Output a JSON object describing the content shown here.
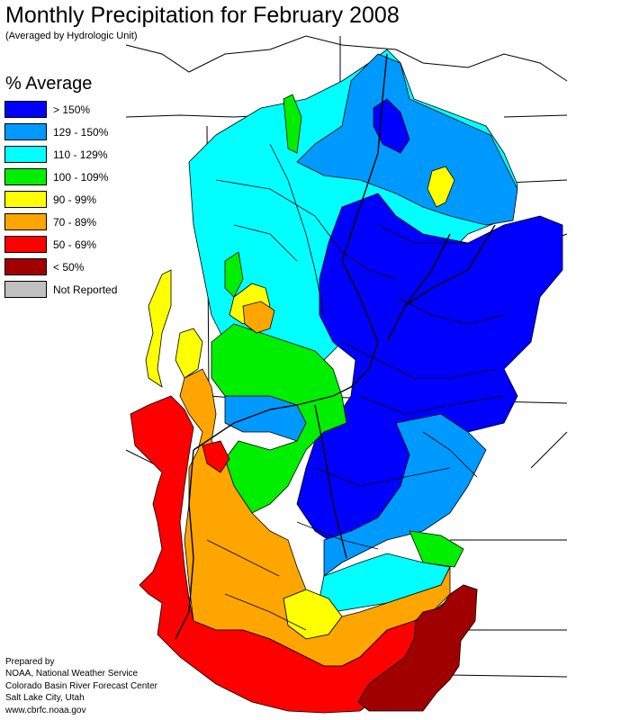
{
  "title": "Monthly Precipitation for February 2008",
  "subtitle": "(Averaged by Hydrologic Unit)",
  "legend": {
    "heading": "% Average",
    "items": [
      {
        "label": "> 150%",
        "color": "#0000ff"
      },
      {
        "label": "129 - 150%",
        "color": "#0099ff"
      },
      {
        "label": "110 - 129%",
        "color": "#00ffff"
      },
      {
        "label": "100 - 109%",
        "color": "#00ee00"
      },
      {
        "label": "90 - 99%",
        "color": "#ffff00"
      },
      {
        "label": "70 - 89%",
        "color": "#ffa500"
      },
      {
        "label": "50 - 69%",
        "color": "#ff0000"
      },
      {
        "label": "< 50%",
        "color": "#a00000"
      },
      {
        "label": "Not Reported",
        "color": "#c0c0c0"
      }
    ]
  },
  "credits": [
    "Prepared by",
    "NOAA, National Weather Service",
    "Colorado Basin River Forecast Center",
    "Salt Lake City, Utah",
    "www.cbrfc.noaa.gov"
  ]
}
